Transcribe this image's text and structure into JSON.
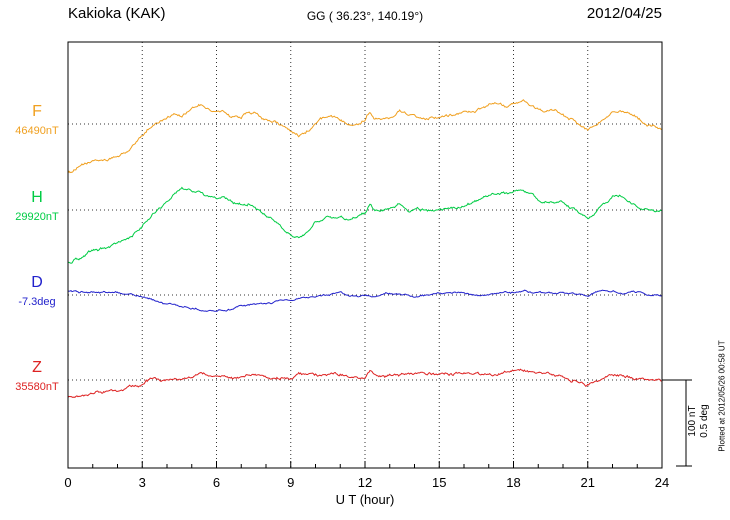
{
  "header": {
    "station": "Kakioka (KAK)",
    "coords": "GG ( 36.23°, 140.19°)",
    "date": "2012/04/25"
  },
  "scalebar": {
    "nt_label": "100 nT",
    "deg_label": "0.5 deg"
  },
  "footer": {
    "plotted_at": "Plotted at 2012/05/26 00:58 UT"
  },
  "chart_data": {
    "type": "line",
    "title": "Kakioka (KAK) geomagnetogram one-day plot",
    "x": {
      "label": "U T (hour)",
      "min": 0,
      "max": 24,
      "ticks": [
        0,
        3,
        6,
        9,
        12,
        15,
        18,
        21,
        24
      ],
      "minor_tick_step_hours": 1,
      "grid": "dotted vertical at major ticks"
    },
    "value_representation": "offset from series baseline, nT for F/H/Z and degrees for D",
    "scale_reference": {
      "nT": 100,
      "deg": 0.5
    },
    "series": [
      {
        "name": "F",
        "units": "nT",
        "baseline_label": "46490nT",
        "baseline_value": 46490,
        "color": "#f0a020",
        "points": [
          [
            0,
            -56
          ],
          [
            0.5,
            -50
          ],
          [
            1,
            -44
          ],
          [
            1.5,
            -42
          ],
          [
            2,
            -38
          ],
          [
            2.5,
            -30
          ],
          [
            3,
            -14
          ],
          [
            3.3,
            -4
          ],
          [
            3.6,
            2
          ],
          [
            4,
            8
          ],
          [
            4.3,
            14
          ],
          [
            4.6,
            10
          ],
          [
            5,
            16
          ],
          [
            5.3,
            22
          ],
          [
            5.6,
            18
          ],
          [
            6,
            12
          ],
          [
            6.3,
            14
          ],
          [
            6.6,
            8
          ],
          [
            7,
            8
          ],
          [
            7.3,
            14
          ],
          [
            7.6,
            12
          ],
          [
            8,
            4
          ],
          [
            8.3,
            2
          ],
          [
            8.6,
            -2
          ],
          [
            9,
            -6
          ],
          [
            9.3,
            -12
          ],
          [
            9.6,
            -10
          ],
          [
            10,
            0
          ],
          [
            10.3,
            6
          ],
          [
            10.6,
            6
          ],
          [
            11,
            4
          ],
          [
            11.3,
            2
          ],
          [
            11.6,
            0
          ],
          [
            12,
            6
          ],
          [
            12.2,
            16
          ],
          [
            12.4,
            8
          ],
          [
            13,
            10
          ],
          [
            13.4,
            16
          ],
          [
            13.8,
            10
          ],
          [
            14,
            12
          ],
          [
            14.5,
            8
          ],
          [
            15,
            10
          ],
          [
            15.5,
            12
          ],
          [
            16,
            14
          ],
          [
            16.5,
            16
          ],
          [
            17,
            20
          ],
          [
            17.4,
            24
          ],
          [
            17.8,
            20
          ],
          [
            18,
            22
          ],
          [
            18.4,
            24
          ],
          [
            18.8,
            18
          ],
          [
            19,
            16
          ],
          [
            19.5,
            14
          ],
          [
            20,
            12
          ],
          [
            20.4,
            6
          ],
          [
            20.8,
            -4
          ],
          [
            21,
            -8
          ],
          [
            21.4,
            0
          ],
          [
            21.8,
            12
          ],
          [
            22,
            18
          ],
          [
            22.3,
            20
          ],
          [
            22.6,
            14
          ],
          [
            23,
            6
          ],
          [
            23.4,
            0
          ],
          [
            23.7,
            -4
          ],
          [
            24,
            -8
          ]
        ]
      },
      {
        "name": "H",
        "units": "nT",
        "baseline_label": "29920nT",
        "baseline_value": 29920,
        "color": "#00cc44",
        "points": [
          [
            0,
            -61
          ],
          [
            0.5,
            -55
          ],
          [
            1,
            -48
          ],
          [
            1.5,
            -45
          ],
          [
            2,
            -40
          ],
          [
            2.5,
            -32
          ],
          [
            3,
            -18
          ],
          [
            3.3,
            -8
          ],
          [
            3.6,
            0
          ],
          [
            4,
            10
          ],
          [
            4.3,
            20
          ],
          [
            4.6,
            26
          ],
          [
            5,
            22
          ],
          [
            5.3,
            24
          ],
          [
            5.6,
            18
          ],
          [
            6,
            14
          ],
          [
            6.3,
            16
          ],
          [
            6.6,
            10
          ],
          [
            7,
            6
          ],
          [
            7.3,
            8
          ],
          [
            7.6,
            2
          ],
          [
            8,
            -6
          ],
          [
            8.3,
            -12
          ],
          [
            8.6,
            -20
          ],
          [
            9,
            -26
          ],
          [
            9.3,
            -32
          ],
          [
            9.6,
            -26
          ],
          [
            10,
            -14
          ],
          [
            10.3,
            -8
          ],
          [
            10.6,
            -6
          ],
          [
            11,
            -8
          ],
          [
            11.3,
            -10
          ],
          [
            11.6,
            -8
          ],
          [
            12,
            -4
          ],
          [
            12.2,
            6
          ],
          [
            12.4,
            -2
          ],
          [
            13,
            0
          ],
          [
            13.4,
            6
          ],
          [
            13.8,
            0
          ],
          [
            14,
            2
          ],
          [
            14.5,
            -2
          ],
          [
            15,
            0
          ],
          [
            15.5,
            2
          ],
          [
            16,
            6
          ],
          [
            16.5,
            10
          ],
          [
            17,
            16
          ],
          [
            17.4,
            22
          ],
          [
            17.8,
            18
          ],
          [
            18,
            20
          ],
          [
            18.4,
            24
          ],
          [
            18.8,
            16
          ],
          [
            19,
            12
          ],
          [
            19.5,
            10
          ],
          [
            20,
            8
          ],
          [
            20.4,
            2
          ],
          [
            20.8,
            -6
          ],
          [
            21,
            -8
          ],
          [
            21.4,
            -2
          ],
          [
            21.8,
            8
          ],
          [
            22,
            14
          ],
          [
            22.3,
            16
          ],
          [
            22.6,
            10
          ],
          [
            23,
            6
          ],
          [
            23.4,
            2
          ],
          [
            23.7,
            0
          ],
          [
            24,
            -2
          ]
        ]
      },
      {
        "name": "D",
        "units": "deg",
        "baseline_label": "-7.3deg",
        "baseline_value": -7.3,
        "color": "#2222cc",
        "points": [
          [
            0,
            0.02
          ],
          [
            0.5,
            0.02
          ],
          [
            1,
            0.015
          ],
          [
            1.5,
            0.01
          ],
          [
            2,
            0.005
          ],
          [
            2.5,
            0
          ],
          [
            3,
            -0.01
          ],
          [
            3.5,
            -0.03
          ],
          [
            4,
            -0.05
          ],
          [
            4.5,
            -0.07
          ],
          [
            5,
            -0.08
          ],
          [
            5.5,
            -0.09
          ],
          [
            6,
            -0.09
          ],
          [
            6.5,
            -0.08
          ],
          [
            7,
            -0.07
          ],
          [
            7.5,
            -0.06
          ],
          [
            8,
            -0.05
          ],
          [
            8.5,
            -0.04
          ],
          [
            9,
            -0.03
          ],
          [
            9.5,
            -0.02
          ],
          [
            10,
            -0.01
          ],
          [
            10.5,
            -0.005
          ],
          [
            11,
            0
          ],
          [
            11.5,
            0
          ],
          [
            12,
            -0.005
          ],
          [
            12.5,
            0
          ],
          [
            13,
            0.005
          ],
          [
            13.5,
            0
          ],
          [
            14,
            0
          ],
          [
            14.5,
            0.005
          ],
          [
            15,
            0
          ],
          [
            15.5,
            0.005
          ],
          [
            16,
            0.01
          ],
          [
            16.5,
            0.005
          ],
          [
            17,
            0.01
          ],
          [
            17.5,
            0.015
          ],
          [
            18,
            0.01
          ],
          [
            18.5,
            0.02
          ],
          [
            19,
            0.015
          ],
          [
            19.5,
            0.01
          ],
          [
            20,
            0.01
          ],
          [
            20.5,
            0.005
          ],
          [
            21,
            0.01
          ],
          [
            21.5,
            0.025
          ],
          [
            22,
            0.015
          ],
          [
            22.5,
            0.01
          ],
          [
            23,
            0.01
          ],
          [
            23.5,
            0.005
          ],
          [
            24,
            0.005
          ]
        ]
      },
      {
        "name": "Z",
        "units": "nT",
        "baseline_label": "35580nT",
        "baseline_value": 35580,
        "color": "#dd2222",
        "points": [
          [
            0,
            -21
          ],
          [
            0.5,
            -19
          ],
          [
            1,
            -16
          ],
          [
            1.5,
            -14
          ],
          [
            2,
            -12
          ],
          [
            2.5,
            -8
          ],
          [
            3,
            -5
          ],
          [
            3.3,
            0
          ],
          [
            3.5,
            3
          ],
          [
            3.8,
            -2
          ],
          [
            4,
            -2
          ],
          [
            4.3,
            2
          ],
          [
            4.6,
            4
          ],
          [
            5,
            5
          ],
          [
            5.3,
            8
          ],
          [
            5.6,
            7
          ],
          [
            6,
            2
          ],
          [
            6.3,
            4
          ],
          [
            6.6,
            3
          ],
          [
            7,
            4
          ],
          [
            7.3,
            8
          ],
          [
            7.6,
            6
          ],
          [
            8,
            1
          ],
          [
            8.3,
            2
          ],
          [
            8.6,
            1
          ],
          [
            9,
            2
          ],
          [
            9.3,
            7
          ],
          [
            9.6,
            5
          ],
          [
            10,
            4
          ],
          [
            10.5,
            5
          ],
          [
            11,
            6
          ],
          [
            11.5,
            4
          ],
          [
            12,
            4
          ],
          [
            12.2,
            10
          ],
          [
            12.4,
            5
          ],
          [
            13,
            6
          ],
          [
            13.5,
            7
          ],
          [
            14,
            8
          ],
          [
            14.5,
            6
          ],
          [
            15,
            6
          ],
          [
            15.5,
            7
          ],
          [
            16,
            8
          ],
          [
            16.5,
            7
          ],
          [
            17,
            6
          ],
          [
            17.5,
            8
          ],
          [
            18,
            10
          ],
          [
            18.5,
            8
          ],
          [
            19,
            6
          ],
          [
            19.5,
            5
          ],
          [
            20,
            4
          ],
          [
            20.5,
            0
          ],
          [
            21,
            -4
          ],
          [
            21.5,
            2
          ],
          [
            22,
            10
          ],
          [
            22.5,
            6
          ],
          [
            23,
            2
          ],
          [
            23.5,
            0
          ],
          [
            24,
            -2
          ]
        ]
      }
    ]
  }
}
